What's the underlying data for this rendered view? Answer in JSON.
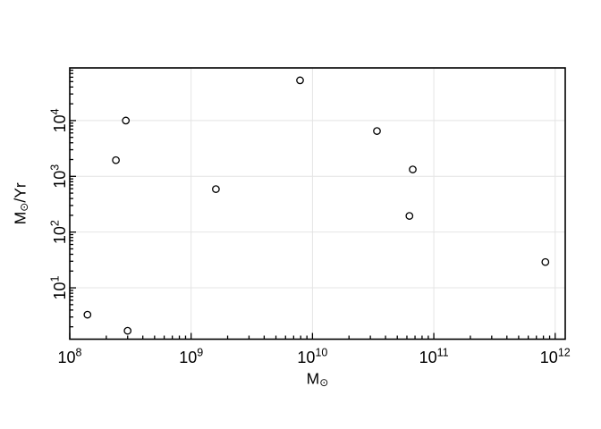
{
  "figure": {
    "background": "#ffffff",
    "frame_color": "#000000",
    "grid_color": "#e4e4e4",
    "text_color": "#000000",
    "marker": {
      "shape": "open-circle",
      "color": "#000000",
      "fill": "#ffffff",
      "radius": 3.7,
      "stroke_width": 1.3
    }
  },
  "chart_data": {
    "type": "scatter",
    "title": "",
    "xlabel_text": "M⊙",
    "ylabel_text": "M⊙/Yr",
    "xlabel": {
      "main": "M",
      "sub": "⊙"
    },
    "ylabel": {
      "main": "M",
      "sub": "⊙",
      "rest": "/Yr"
    },
    "x_scale": "log",
    "y_scale": "log",
    "xlim": [
      100000000.0,
      1210000000000.0
    ],
    "ylim": [
      1.2,
      88000
    ],
    "x_tick_exponents": [
      8,
      9,
      10,
      11,
      12
    ],
    "y_tick_exponents": [
      1,
      2,
      3,
      4
    ],
    "grid": true,
    "legend": null,
    "points": [
      {
        "x": 140000000.0,
        "y": 3.3
      },
      {
        "x": 240000000.0,
        "y": 1950
      },
      {
        "x": 290000000.0,
        "y": 10000
      },
      {
        "x": 300000000.0,
        "y": 1.7
      },
      {
        "x": 1600000000.0,
        "y": 590
      },
      {
        "x": 7900000000.0,
        "y": 52600
      },
      {
        "x": 34000000000.0,
        "y": 6500
      },
      {
        "x": 63000000000.0,
        "y": 195
      },
      {
        "x": 67000000000.0,
        "y": 1330
      },
      {
        "x": 830000000000.0,
        "y": 29
      }
    ]
  }
}
